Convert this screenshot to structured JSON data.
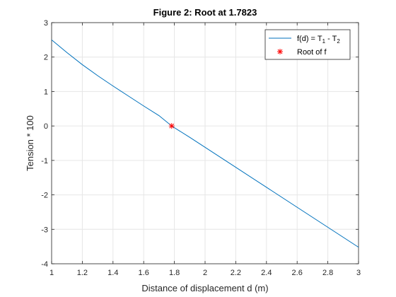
{
  "chart_data": {
    "type": "line",
    "title": "Figure 2: Root at 1.7823",
    "xlabel": "Distance of displacement d (m)",
    "ylabel": "Tension * 100",
    "xlim": [
      1,
      3
    ],
    "ylim": [
      -4,
      3
    ],
    "xticks": [
      1,
      1.2,
      1.4,
      1.6,
      1.8,
      2,
      2.2,
      2.4,
      2.6,
      2.8,
      3
    ],
    "xtick_labels": [
      "1",
      "1.2",
      "1.4",
      "1.6",
      "1.8",
      "2",
      "2.2",
      "2.4",
      "2.6",
      "2.8",
      "3"
    ],
    "yticks": [
      -4,
      -3,
      -2,
      -1,
      0,
      1,
      2,
      3
    ],
    "ytick_labels": [
      "-4",
      "-3",
      "-2",
      "-1",
      "0",
      "1",
      "2",
      "3"
    ],
    "grid": true,
    "legend": {
      "placement": "top-right",
      "entries": [
        {
          "label_main": "f(d) = T",
          "sub1": "1",
          "label_mid": " - T",
          "sub2": "2"
        },
        {
          "label": "Root of f"
        }
      ]
    },
    "series": [
      {
        "name": "f(d) = T1 - T2",
        "color": "#0072bd",
        "x": [
          1.0,
          1.1,
          1.2,
          1.3,
          1.4,
          1.5,
          1.6,
          1.7,
          1.7823,
          1.9,
          2.0,
          2.2,
          2.4,
          2.6,
          2.8,
          3.0
        ],
        "y": [
          2.5,
          2.13,
          1.78,
          1.46,
          1.16,
          0.87,
          0.58,
          0.3,
          0.0,
          -0.33,
          -0.62,
          -1.2,
          -1.78,
          -2.36,
          -2.94,
          -3.52
        ]
      }
    ],
    "markers": [
      {
        "name": "Root of f",
        "x": 1.7823,
        "y": 0,
        "color": "#ff0000",
        "symbol": "asterisk"
      }
    ]
  }
}
